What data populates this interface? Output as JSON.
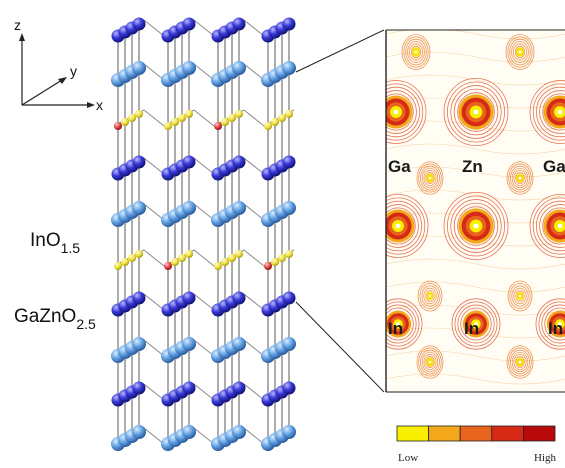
{
  "axes": {
    "z": "z",
    "y": "y",
    "x": "x"
  },
  "layers": {
    "in": {
      "base": "InO",
      "sub": "1.5"
    },
    "gazn": {
      "base": "GaZnO",
      "sub": "2.5"
    }
  },
  "map_labels": {
    "top": [
      "Ga",
      "Zn",
      "Ga"
    ],
    "bottom": [
      "In",
      "In",
      "In"
    ]
  },
  "legend": {
    "low": "Low",
    "high": "High",
    "colors": [
      "#f8f000",
      "#f2a81a",
      "#e8641c",
      "#d72a16",
      "#b80a0a"
    ]
  },
  "colors": {
    "in_atom": "#6aa6e6",
    "ga_atom": "#3a3ad8",
    "o_atom": "#f0e040",
    "o_atom_alt": "#e04040",
    "bond": "#8a8a8a",
    "contour_line": "#e05030"
  }
}
